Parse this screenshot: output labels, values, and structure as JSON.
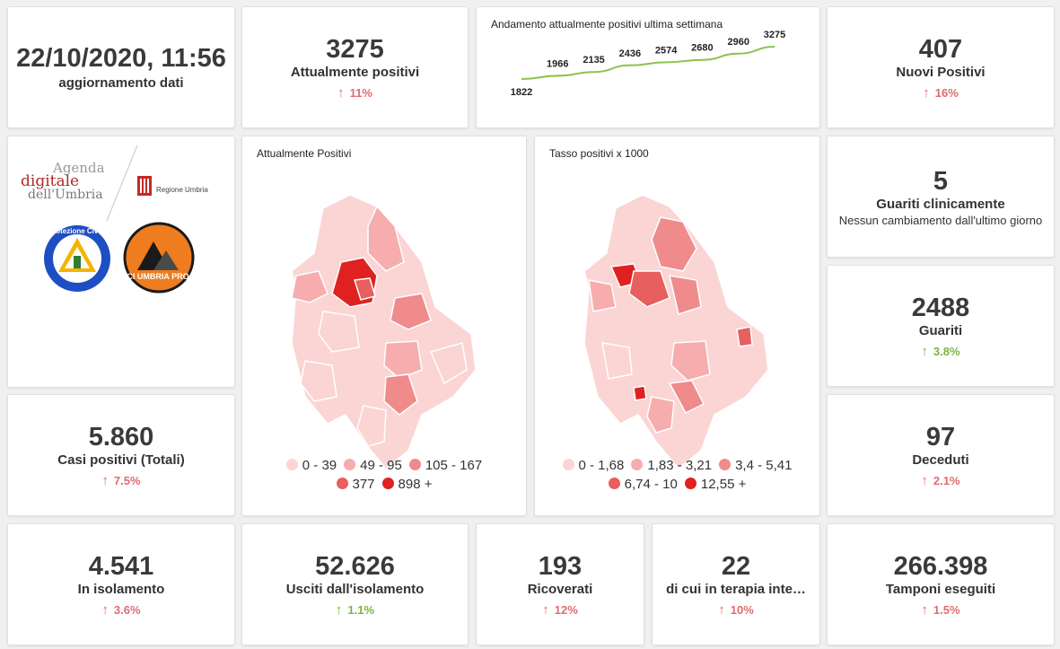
{
  "update": {
    "datetime": "22/10/2020, 11:56",
    "label": "aggiornamento dati"
  },
  "attualmente_positivi": {
    "value": "3275",
    "label": "Attualmente positivi",
    "delta": "11%",
    "direction": "up",
    "color": "#e06b70"
  },
  "trend": {
    "title": "Andamento attualmente positivi ultima settimana",
    "line_color": "#8bc34a"
  },
  "chart_data": {
    "type": "line",
    "title": "Andamento attualmente positivi ultima settimana",
    "values": [
      1822,
      1966,
      2135,
      2436,
      2574,
      2680,
      2960,
      3275
    ],
    "labels": [
      "1822",
      "1966",
      "2135",
      "2436",
      "2574",
      "2680",
      "2960",
      "3275"
    ]
  },
  "nuovi_positivi": {
    "value": "407",
    "label": "Nuovi Positivi",
    "delta": "16%",
    "direction": "up"
  },
  "logos": {
    "agenda_line1": "Agenda",
    "agenda_line2": "digitale",
    "agenda_line3": "dell'Umbria",
    "regione": "Regione Umbria",
    "protezione": "Protezione Civile",
    "anci": "ANCI UMBRIA PROCIV"
  },
  "map1": {
    "title": "Attualmente Positivi",
    "legend": [
      {
        "label": "0 - 39",
        "color": "#fbd4d4"
      },
      {
        "label": "49 - 95",
        "color": "#f7adad"
      },
      {
        "label": "105 - 167",
        "color": "#f08b8b"
      },
      {
        "label": "377",
        "color": "#e85f5f"
      },
      {
        "label": "898 +",
        "color": "#e02121"
      }
    ]
  },
  "map2": {
    "title": "Tasso positivi x 1000",
    "legend": [
      {
        "label": "0 - 1,68",
        "color": "#fbd4d4"
      },
      {
        "label": "1,83 - 3,21",
        "color": "#f7adad"
      },
      {
        "label": "3,4 - 5,41",
        "color": "#f08b8b"
      },
      {
        "label": "6,74 - 10",
        "color": "#e85f5f"
      },
      {
        "label": "12,55 +",
        "color": "#e02121"
      }
    ]
  },
  "guariti_clinicamente": {
    "value": "5",
    "label": "Guariti clinicamente",
    "note": "Nessun cambiamento dall'ultimo giorno"
  },
  "guariti": {
    "value": "2488",
    "label": "Guariti",
    "delta": "3.8%",
    "direction": "up"
  },
  "casi_totali": {
    "value": "5.860",
    "label": "Casi positivi (Totali)",
    "delta": "7.5%",
    "direction": "up"
  },
  "deceduti": {
    "value": "97",
    "label": "Deceduti",
    "delta": "2.1%",
    "direction": "up"
  },
  "isolamento": {
    "value": "4.541",
    "label": "In isolamento",
    "delta": "3.6%",
    "direction": "up"
  },
  "usciti": {
    "value": "52.626",
    "label": "Usciti dall'isolamento",
    "delta": "1.1%",
    "direction": "up"
  },
  "ricoverati": {
    "value": "193",
    "label": "Ricoverati",
    "delta": "12%",
    "direction": "up"
  },
  "terapia": {
    "value": "22",
    "label": "di cui in terapia inte…",
    "delta": "10%",
    "direction": "up"
  },
  "tamponi": {
    "value": "266.398",
    "label": "Tamponi eseguiti",
    "delta": "1.5%",
    "direction": "up"
  },
  "arrow_up": "↑"
}
